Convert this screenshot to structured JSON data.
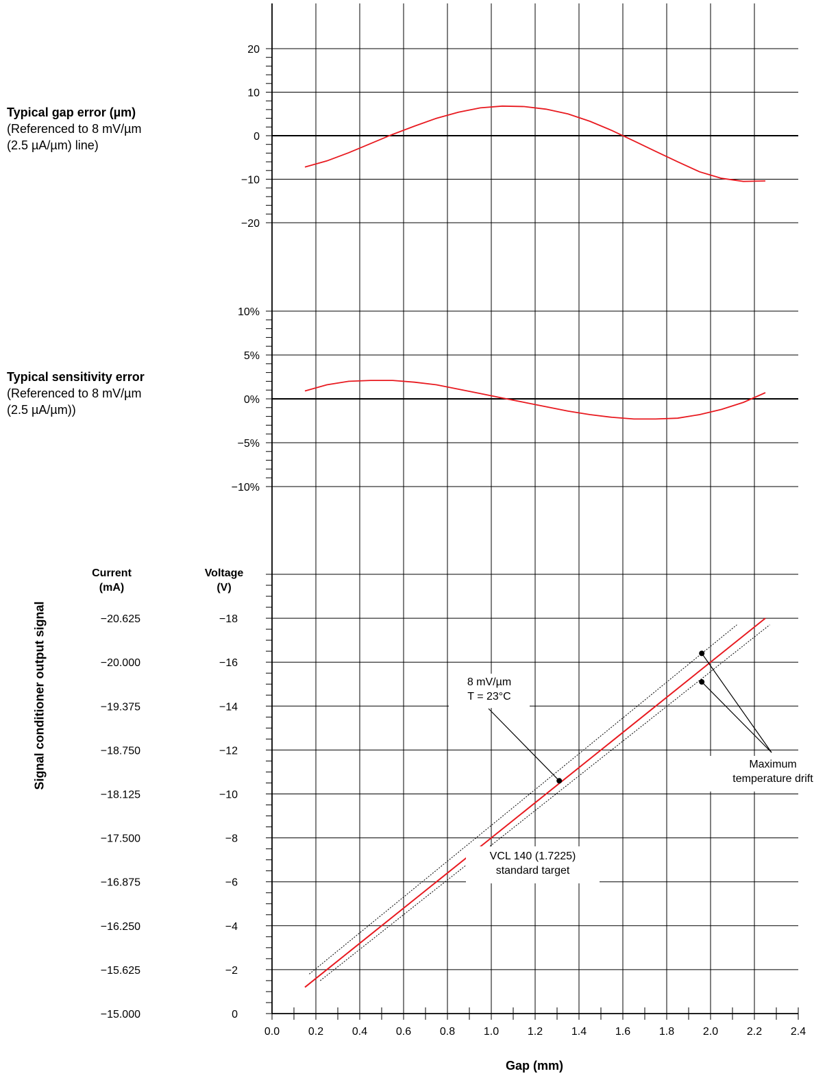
{
  "gap_error_panel": {
    "title": "Typical gap error (µm)",
    "subtitle_line1": "(Referenced to 8 mV/µm",
    "subtitle_line2": "(2.5 µA/µm) line)"
  },
  "sensitivity_panel": {
    "title": "Typical sensitivity error",
    "subtitle_line1": "(Referenced to 8 mV/µm",
    "subtitle_line2": "(2.5 µA/µm))"
  },
  "output_panel": {
    "current_header_line1": "Current",
    "current_header_line2": "(mA)",
    "voltage_header_line1": "Voltage",
    "voltage_header_line2": "(V)",
    "vertical_label": "Signal conditioner output signal",
    "callout_sensitivity_line1": "8 mV/µm",
    "callout_sensitivity_line2": "T = 23°C",
    "callout_drift_line1": "Maximum",
    "callout_drift_line2": "temperature drift",
    "callout_target_line1": "VCL 140 (1.7225)",
    "callout_target_line2": "standard target"
  },
  "x_axis_title": "Gap (mm)",
  "colors": {
    "curve": "#e8191f",
    "grid": "#000000",
    "dotted": "#000000"
  },
  "chart_data": [
    {
      "type": "line",
      "panel": "gap_error",
      "xlabel": "Gap (mm)",
      "ylabel": "Typical gap error (µm)",
      "xlim": [
        0,
        2.4
      ],
      "ylim": [
        -20,
        20
      ],
      "y_ticks": [
        20,
        10,
        0,
        -10,
        -20
      ],
      "y_tick_labels": [
        "20",
        "10",
        "0",
        "−10",
        "−20"
      ],
      "series": [
        {
          "x": [
            0.15,
            0.25,
            0.35,
            0.45,
            0.55,
            0.65,
            0.75,
            0.85,
            0.95,
            1.05,
            1.15,
            1.25,
            1.35,
            1.45,
            1.55,
            1.65,
            1.75,
            1.85,
            1.95,
            2.05,
            2.15,
            2.25
          ],
          "y": [
            -7.2,
            -5.8,
            -3.9,
            -1.8,
            0.3,
            2.2,
            4.0,
            5.4,
            6.4,
            6.8,
            6.7,
            6.1,
            5.0,
            3.3,
            1.2,
            -1.2,
            -3.6,
            -6.0,
            -8.3,
            -9.8,
            -10.5,
            -10.4
          ]
        }
      ]
    },
    {
      "type": "line",
      "panel": "sensitivity_error",
      "xlabel": "Gap (mm)",
      "ylabel": "Typical sensitivity error",
      "xlim": [
        0,
        2.4
      ],
      "ylim": [
        -10,
        10
      ],
      "y_ticks": [
        10,
        5,
        0,
        -5,
        -10
      ],
      "y_tick_labels": [
        "10%",
        "5%",
        "0%",
        "−5%",
        "−10%"
      ],
      "series": [
        {
          "x": [
            0.15,
            0.25,
            0.35,
            0.45,
            0.55,
            0.65,
            0.75,
            0.85,
            0.95,
            1.05,
            1.15,
            1.25,
            1.35,
            1.45,
            1.55,
            1.65,
            1.75,
            1.85,
            1.95,
            2.05,
            2.15,
            2.25
          ],
          "y": [
            0.9,
            1.6,
            2.0,
            2.1,
            2.1,
            1.9,
            1.6,
            1.1,
            0.6,
            0.1,
            -0.4,
            -0.9,
            -1.4,
            -1.8,
            -2.1,
            -2.3,
            -2.3,
            -2.2,
            -1.8,
            -1.2,
            -0.4,
            0.7
          ]
        }
      ]
    },
    {
      "type": "line",
      "panel": "output_signal",
      "xlabel": "Gap (mm)",
      "ylabel": "Signal conditioner output signal",
      "xlim": [
        0,
        2.4
      ],
      "ylim": [
        0,
        -20
      ],
      "x_ticks": [
        0.0,
        0.2,
        0.4,
        0.6,
        0.8,
        1.0,
        1.2,
        1.4,
        1.6,
        1.8,
        2.0,
        2.2,
        2.4
      ],
      "x_tick_labels": [
        "0.0",
        "0.2",
        "0.4",
        "0.6",
        "0.8",
        "1.0",
        "1.2",
        "1.4",
        "1.6",
        "1.8",
        "2.0",
        "2.2",
        "2.4"
      ],
      "voltage_ticks": [
        0,
        -2,
        -4,
        -6,
        -8,
        -10,
        -12,
        -14,
        -16,
        -18
      ],
      "voltage_tick_labels": [
        "0",
        "−2",
        "−4",
        "−6",
        "−8",
        "−10",
        "−12",
        "−14",
        "−16",
        "−18"
      ],
      "current_tick_labels": [
        "−15.000",
        "−15.625",
        "−16.250",
        "−16.875",
        "−17.500",
        "−18.125",
        "−18.750",
        "−19.375",
        "−20.000",
        "−20.625"
      ],
      "series": [
        {
          "name": "8 mV/µm",
          "x": [
            0.15,
            2.25
          ],
          "y": [
            -1.2,
            -18.0
          ]
        },
        {
          "style": "dotted",
          "x": [
            0.17,
            2.12
          ],
          "y": [
            -1.8,
            -17.7
          ]
        },
        {
          "style": "dotted",
          "x": [
            0.22,
            2.27
          ],
          "y": [
            -1.5,
            -17.7
          ]
        }
      ],
      "markers": [
        {
          "x": 1.31,
          "y": -10.6
        },
        {
          "x": 1.96,
          "y": -16.4
        },
        {
          "x": 1.96,
          "y": -15.1
        }
      ]
    }
  ]
}
